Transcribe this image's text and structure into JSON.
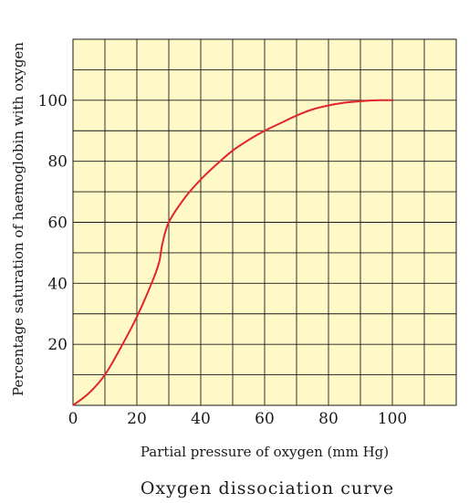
{
  "chart_data": {
    "type": "line",
    "title": "Oxygen dissociation curve",
    "xlabel": "Partial pressure of oxygen (mm Hg)",
    "ylabel": "Percentage saturation of haemoglobin with oxygen",
    "xlim": [
      0,
      120
    ],
    "ylim": [
      0,
      120
    ],
    "x_ticks": [
      "0",
      "20",
      "40",
      "60",
      "80",
      "100"
    ],
    "y_ticks": [
      "20",
      "40",
      "60",
      "80",
      "100"
    ],
    "grid": true,
    "colors": {
      "plot_background": "#fff9c8",
      "grid": "#1a1a1a",
      "curve": "#e0262b"
    },
    "series": [
      {
        "x": [
          0,
          5,
          10,
          15,
          20,
          25,
          27,
          28,
          30,
          35,
          40,
          45,
          50,
          55,
          60,
          65,
          70,
          75,
          80,
          85,
          90,
          95,
          100
        ],
        "y": [
          0,
          4,
          10,
          19,
          29,
          41,
          47,
          53,
          60,
          68,
          74,
          79,
          83.5,
          87,
          90,
          92.5,
          95,
          97,
          98.3,
          99.2,
          99.7,
          100,
          100
        ]
      }
    ]
  }
}
